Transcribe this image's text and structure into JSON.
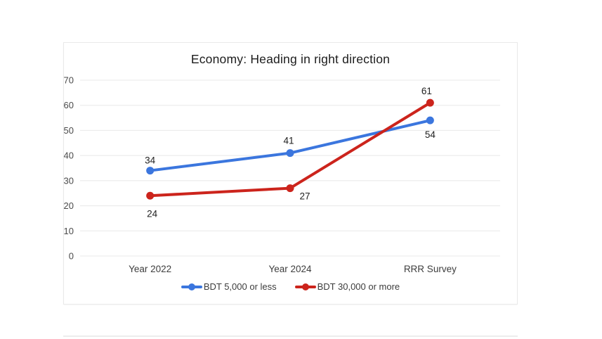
{
  "chart_data": {
    "type": "line",
    "title": "Economy: Heading in right direction",
    "categories": [
      "Year 2022",
      "Year 2024",
      "RRR Survey"
    ],
    "series": [
      {
        "name": "BDT 5,000 or less",
        "color": "#3b76de",
        "values": [
          34,
          41,
          54
        ],
        "label_offsets": [
          [
            0,
            -10
          ],
          [
            -2,
            -13
          ],
          [
            0,
            25
          ]
        ]
      },
      {
        "name": "BDT 30,000 or more",
        "color": "#cc241c",
        "values": [
          24,
          27,
          61
        ],
        "label_offsets": [
          [
            3,
            30
          ],
          [
            21,
            16
          ],
          [
            -5,
            -12
          ]
        ]
      }
    ],
    "xlabel": "",
    "ylabel": "",
    "ylim": [
      0,
      70
    ],
    "ytick_step": 10,
    "grid": true,
    "grid_color": "#e8e8e8",
    "axis_text_color": "#4a4a4a",
    "data_label_color": "#1f1f1f",
    "legend_position": "bottom"
  }
}
